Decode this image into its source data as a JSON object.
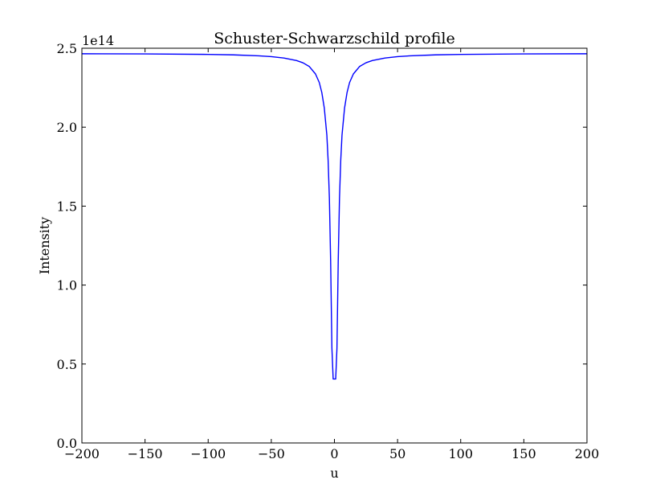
{
  "chart_data": {
    "type": "line",
    "title": "Schuster-Schwarzschild profile",
    "xlabel": "u",
    "ylabel": "Intensity",
    "y_offset_label": "1e14",
    "xlim": [
      -200,
      200
    ],
    "ylim": [
      0,
      2.5
    ],
    "x_ticks": [
      -200,
      -150,
      -100,
      -50,
      0,
      50,
      100,
      150,
      200
    ],
    "x_tick_labels": [
      "−200",
      "−150",
      "−100",
      "−50",
      "0",
      "50",
      "100",
      "150",
      "200"
    ],
    "y_ticks": [
      0,
      0.5,
      1.0,
      1.5,
      2.0,
      2.5
    ],
    "y_tick_labels": [
      "0.0",
      "0.5",
      "1.0",
      "1.5",
      "2.0",
      "2.5"
    ],
    "grid": false,
    "series": [
      {
        "color": "#0000ff",
        "x": [
          -200,
          -150,
          -100,
          -80,
          -60,
          -50,
          -40,
          -30,
          -25,
          -20,
          -15,
          -12,
          -10,
          -8,
          -6,
          -5,
          -4,
          -3,
          -2,
          -1,
          1,
          2,
          3,
          4,
          5,
          6,
          8,
          10,
          12,
          15,
          20,
          25,
          30,
          40,
          50,
          60,
          80,
          100,
          150,
          200
        ],
        "y": [
          2.465,
          2.464,
          2.461,
          2.458,
          2.452,
          2.447,
          2.438,
          2.422,
          2.408,
          2.385,
          2.337,
          2.283,
          2.22,
          2.12,
          1.95,
          1.79,
          1.55,
          1.15,
          0.6,
          0.405,
          0.405,
          0.6,
          1.15,
          1.55,
          1.79,
          1.95,
          2.12,
          2.22,
          2.283,
          2.337,
          2.385,
          2.408,
          2.422,
          2.438,
          2.447,
          2.452,
          2.458,
          2.461,
          2.464,
          2.465
        ]
      }
    ]
  }
}
